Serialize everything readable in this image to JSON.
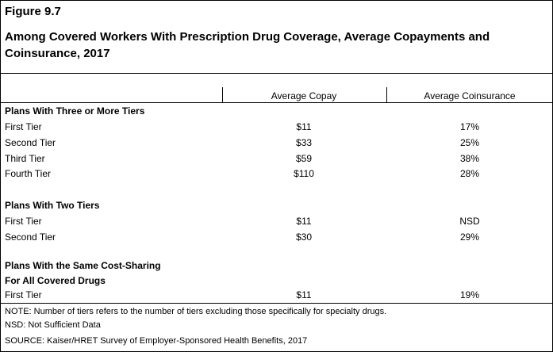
{
  "figure_label": "Figure 9.7",
  "title": "Among Covered Workers With Prescription Drug Coverage, Average Copayments and Coinsurance, 2017",
  "columns": {
    "copay": "Average Copay",
    "coinsurance": "Average Coinsurance"
  },
  "sections": [
    {
      "heading": "Plans With Three or More Tiers",
      "rows": [
        {
          "label": "First Tier",
          "copay": "$11",
          "coinsurance": "17%"
        },
        {
          "label": "Second Tier",
          "copay": "$33",
          "coinsurance": "25%"
        },
        {
          "label": "Third Tier",
          "copay": "$59",
          "coinsurance": "38%"
        },
        {
          "label": "Fourth Tier",
          "copay": "$110",
          "coinsurance": "28%"
        }
      ]
    },
    {
      "heading": "Plans With Two Tiers",
      "rows": [
        {
          "label": "First Tier",
          "copay": "$11",
          "coinsurance": "NSD"
        },
        {
          "label": "Second Tier",
          "copay": "$30",
          "coinsurance": "29%"
        }
      ]
    },
    {
      "heading_line1": "Plans With the Same Cost-Sharing",
      "heading_line2": "For All Covered Drugs",
      "rows": [
        {
          "label": "First Tier",
          "copay": "$11",
          "coinsurance": "19%"
        }
      ]
    }
  ],
  "notes": {
    "note": "NOTE: Number of tiers refers to the number of tiers excluding those specifically for specialty drugs.",
    "nsd": "NSD: Not Sufficient Data",
    "source": "SOURCE: Kaiser/HRET Survey of Employer-Sponsored Health Benefits, 2017"
  }
}
